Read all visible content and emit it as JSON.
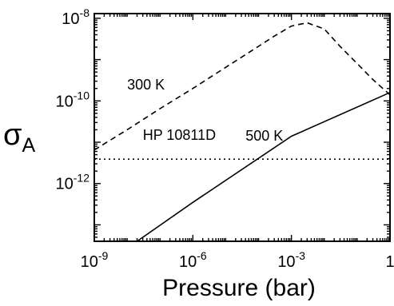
{
  "chart_data": {
    "type": "line",
    "xlabel": "Pressure (bar)",
    "ylabel": {
      "base": "σ",
      "sub": "A"
    },
    "x_scale": "log",
    "y_scale": "log",
    "xlim": [
      1e-09,
      1
    ],
    "ylim": [
      4e-14,
      1.3e-08
    ],
    "grid": false,
    "legend": "none",
    "x_ticks": [
      {
        "value": 1e-09,
        "base": "10",
        "exp": "-9"
      },
      {
        "value": 1e-06,
        "base": "10",
        "exp": "-6"
      },
      {
        "value": 0.001,
        "base": "10",
        "exp": "-3"
      },
      {
        "value": 1,
        "base": "1",
        "exp": ""
      }
    ],
    "y_ticks": [
      {
        "value": 1e-08,
        "base": "10",
        "exp": "-8"
      },
      {
        "value": 1e-10,
        "base": "10",
        "exp": "-10"
      },
      {
        "value": 1e-12,
        "base": "10",
        "exp": "-12"
      }
    ],
    "series": [
      {
        "name": "300 K",
        "dash": "dashed",
        "x": [
          1e-09,
          1e-08,
          1e-07,
          1e-06,
          1e-05,
          0.0001,
          0.0003,
          0.001,
          0.003,
          0.01,
          0.03,
          0.1,
          0.3,
          1
        ],
        "y": [
          6.5e-12,
          2e-11,
          6.5e-11,
          2e-10,
          6.5e-10,
          2.1e-09,
          3.7e-09,
          6.5e-09,
          7.8e-09,
          5.5e-09,
          2.1e-09,
          8e-10,
          3.3e-10,
          1.4e-10
        ]
      },
      {
        "name": "500 K",
        "dash": "solid",
        "x": [
          2e-08,
          1e-06,
          0.001,
          1
        ],
        "y": [
          4e-14,
          3.5e-13,
          1.4e-11,
          1.6e-10
        ]
      },
      {
        "name": "HP 10811D",
        "dash": "dotted",
        "x": [
          1e-09,
          1
        ],
        "y": [
          3.9e-12,
          3.9e-12
        ]
      }
    ],
    "annotations": [
      {
        "text": "300 K",
        "x": 1e-08,
        "y": 1.9e-10
      },
      {
        "text": "500 K",
        "x": 4e-05,
        "y": 1.1e-11
      },
      {
        "text": "HP 10811D",
        "x": 3e-08,
        "y": 1.15e-11
      }
    ]
  }
}
